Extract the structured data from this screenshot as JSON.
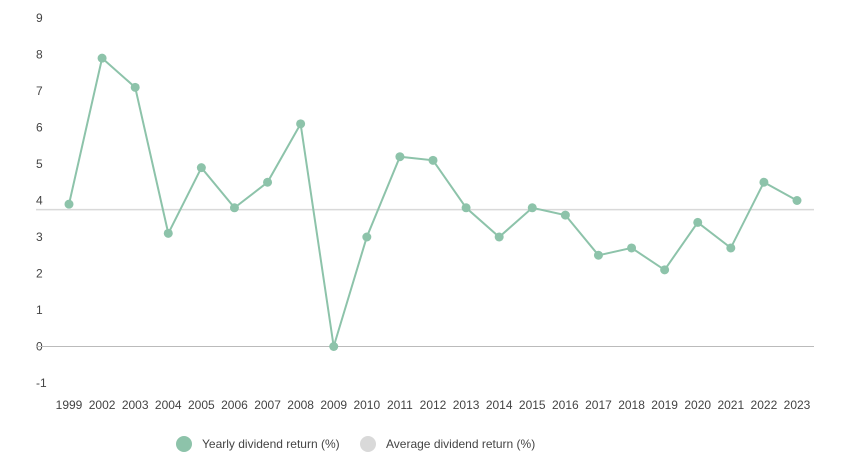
{
  "chart_data": {
    "type": "line",
    "title": "",
    "xlabel": "",
    "ylabel": "",
    "categories": [
      "1999",
      "2002",
      "2003",
      "2004",
      "2005",
      "2006",
      "2007",
      "2008",
      "2009",
      "2010",
      "2011",
      "2012",
      "2013",
      "2014",
      "2015",
      "2016",
      "2017",
      "2018",
      "2019",
      "2020",
      "2021",
      "2022",
      "2023"
    ],
    "series": [
      {
        "name": "Yearly dividend return (%)",
        "color": "#8dc3aa",
        "values": [
          3.9,
          7.9,
          7.1,
          3.1,
          4.9,
          3.8,
          4.5,
          6.1,
          0.0,
          3.0,
          5.2,
          5.1,
          3.8,
          3.0,
          3.8,
          3.6,
          2.5,
          2.7,
          2.1,
          3.4,
          2.7,
          4.5,
          4.0
        ]
      },
      {
        "name": "Average dividend return (%)",
        "color": "#d9d9d9",
        "value": 3.75
      }
    ],
    "y_ticks": [
      "9",
      "8",
      "7",
      "6",
      "5",
      "4",
      "3",
      "2",
      "1",
      "0",
      "-1"
    ],
    "ylim": [
      -1,
      9
    ],
    "grid": false,
    "legend_position": "bottom"
  }
}
